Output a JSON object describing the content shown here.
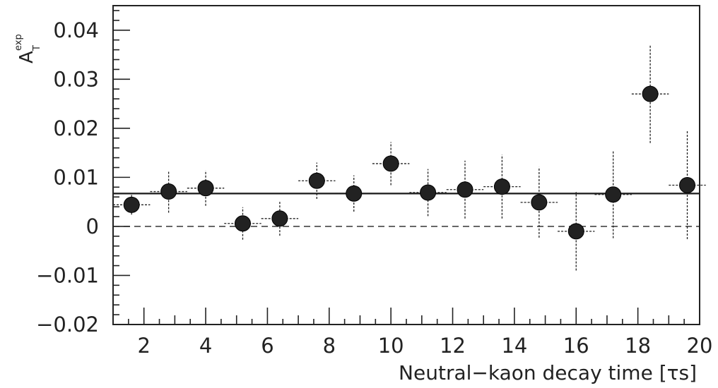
{
  "chart_data": {
    "type": "scatter",
    "title": "",
    "xlabel": "Neutral−kaon decay time  [τs]",
    "ylabel": {
      "main": "A",
      "sub": "T",
      "sup": "exp"
    },
    "xlim": [
      1.0,
      20.0
    ],
    "ylim": [
      -0.02,
      0.045
    ],
    "x_ticks": [
      2,
      4,
      6,
      8,
      10,
      12,
      14,
      16,
      18,
      20
    ],
    "y_ticks": [
      -0.02,
      -0.01,
      0,
      0.01,
      0.02,
      0.03,
      0.04
    ],
    "y_tick_labels": [
      "−0.02",
      "−0.01",
      "0",
      "0.01",
      "0.02",
      "0.03",
      "0.04"
    ],
    "grid": false,
    "reference_lines": [
      {
        "y": 0.0067,
        "style": "solid"
      },
      {
        "y": 0.0,
        "style": "dashed"
      }
    ],
    "series": [
      {
        "x": [
          1.6,
          2.8,
          4.0,
          5.2,
          6.4,
          7.6,
          8.8,
          10.0,
          11.2,
          12.4,
          13.6,
          14.8,
          16.0,
          17.2,
          18.4,
          19.6
        ],
        "x_err": [
          0.6,
          0.6,
          0.6,
          0.6,
          0.6,
          0.6,
          0.6,
          0.6,
          0.6,
          0.6,
          0.6,
          0.6,
          0.6,
          0.6,
          0.6,
          0.6
        ],
        "y": [
          0.0044,
          0.0071,
          0.0078,
          0.0006,
          0.0016,
          0.0093,
          0.0067,
          0.0128,
          0.0069,
          0.0075,
          0.0081,
          0.0049,
          -0.001,
          0.0065,
          0.027,
          0.0084
        ],
        "y_err": [
          0.002,
          0.0043,
          0.0036,
          0.0033,
          0.0035,
          0.0037,
          0.0037,
          0.0044,
          0.0048,
          0.0059,
          0.0065,
          0.0072,
          0.008,
          0.0089,
          0.01,
          0.011
        ]
      }
    ],
    "marker_color": "#222222"
  }
}
